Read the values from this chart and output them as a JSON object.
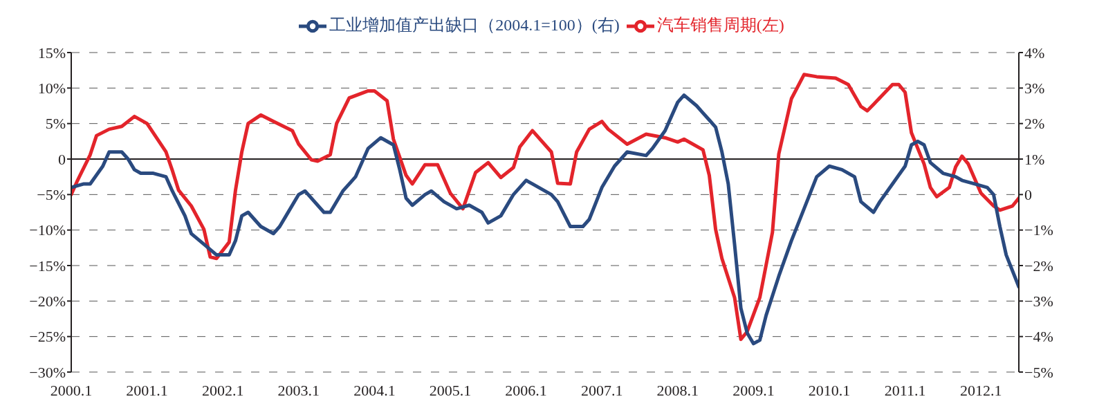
{
  "chart_data": {
    "type": "line",
    "legend": "top",
    "grid": "y",
    "marker": "none",
    "line_style": "solid",
    "xlim": [
      "2000-01",
      "2012-07"
    ],
    "xticks": [
      {
        "value": "2000-01",
        "label": "2000.1"
      },
      {
        "value": "2001-01",
        "label": "2001.1"
      },
      {
        "value": "2002-01",
        "label": "2002.1"
      },
      {
        "value": "2003-01",
        "label": "2003.1"
      },
      {
        "value": "2004-01",
        "label": "2004.1"
      },
      {
        "value": "2005-01",
        "label": "2005.1"
      },
      {
        "value": "2006-01",
        "label": "2006.1"
      },
      {
        "value": "2007-01",
        "label": "2007.1"
      },
      {
        "value": "2008-01",
        "label": "2008.1"
      },
      {
        "value": "2009-01",
        "label": "2009.1"
      },
      {
        "value": "2010-01",
        "label": "2010.1"
      },
      {
        "value": "2011-01",
        "label": "2011.1"
      },
      {
        "value": "2012-01",
        "label": "2012.1"
      }
    ],
    "ylim": [
      -30,
      15
    ],
    "yticks": [
      {
        "value": 15,
        "label": "15%"
      },
      {
        "value": 10,
        "label": "10%"
      },
      {
        "value": 5,
        "label": "5%"
      },
      0,
      {
        "value": -5,
        "label": "−5%"
      },
      {
        "value": -10,
        "label": "−10%"
      },
      {
        "value": -15,
        "label": "−15%"
      },
      {
        "value": -20,
        "label": "−20%"
      },
      {
        "value": -25,
        "label": "−25%"
      },
      {
        "value": -30,
        "label": "−30%"
      }
    ],
    "y2lim": [
      -5,
      4
    ],
    "y2ticks": [
      {
        "value": 4,
        "label": "4%"
      },
      {
        "value": 3,
        "label": "3%"
      },
      {
        "value": 2,
        "label": "2%"
      },
      {
        "value": 1,
        "label": "1%"
      },
      0,
      {
        "value": -1,
        "label": "−1%"
      },
      {
        "value": -2,
        "label": "−2%"
      },
      {
        "value": -3,
        "label": "−3%"
      },
      {
        "value": -4,
        "label": "−4%"
      },
      {
        "value": -5,
        "label": "−5%"
      }
    ],
    "ref_lines": [
      {
        "axis": "y",
        "value": 0,
        "color": "#231f20"
      }
    ],
    "series": [
      {
        "name": "汽车销售周期(左)",
        "color": "#e3242b",
        "x": [
          "2000-01",
          "2000-02",
          "2000-04",
          "2000-05",
          "2000-07",
          "2000-09",
          "2000-11",
          "2001-01",
          "2001-04",
          "2001-05",
          "2001-06",
          "2001-08",
          "2001-10",
          "2001-11",
          "2001-12",
          "2002-02",
          "2002-03",
          "2002-04",
          "2002-05",
          "2002-07",
          "2002-09",
          "2002-12",
          "2003-01",
          "2003-03",
          "2003-04",
          "2003-06",
          "2003-07",
          "2003-09",
          "2003-12",
          "2004-01",
          "2004-03",
          "2004-04",
          "2004-06",
          "2004-07",
          "2004-09",
          "2004-11",
          "2005-01",
          "2005-03",
          "2005-05",
          "2005-07",
          "2005-09",
          "2005-11",
          "2005-12",
          "2006-02",
          "2006-05",
          "2006-06",
          "2006-08",
          "2006-09",
          "2006-11",
          "2007-01",
          "2007-02",
          "2007-05",
          "2007-08",
          "2007-11",
          "2008-01",
          "2008-02",
          "2008-05",
          "2008-06",
          "2008-07",
          "2008-08",
          "2008-10",
          "2008-11",
          "2008-12",
          "2009-02",
          "2009-04",
          "2009-05",
          "2009-07",
          "2009-09",
          "2009-11",
          "2010-02",
          "2010-04",
          "2010-06",
          "2010-07",
          "2010-08",
          "2010-11",
          "2010-12",
          "2011-01",
          "2011-02",
          "2011-04",
          "2011-05",
          "2011-06",
          "2011-08",
          "2011-09",
          "2011-10",
          "2011-11",
          "2012-01",
          "2012-03",
          "2012-04",
          "2012-06",
          "2012-07"
        ],
        "values": [
          -5.0,
          -3.0,
          0.6,
          3.3,
          4.2,
          4.6,
          6.0,
          5.0,
          1.0,
          -1.6,
          -4.4,
          -6.6,
          -9.9,
          -13.8,
          -14.0,
          -11.7,
          -4.4,
          1.0,
          5.0,
          6.2,
          5.3,
          4.0,
          2.1,
          -0.1,
          -0.3,
          0.6,
          5.0,
          8.6,
          9.6,
          9.6,
          8.2,
          2.8,
          -2.3,
          -3.5,
          -0.8,
          -0.8,
          -4.8,
          -7.0,
          -1.9,
          -0.5,
          -2.6,
          -1.2,
          1.7,
          4.0,
          1.0,
          -3.4,
          -3.5,
          1.0,
          4.2,
          5.3,
          4.2,
          2.1,
          3.5,
          3.0,
          2.4,
          2.8,
          1.3,
          -2.3,
          -9.9,
          -14.0,
          -19.5,
          -25.4,
          -24.3,
          -19.5,
          -10.3,
          0.7,
          8.5,
          11.9,
          11.6,
          11.4,
          10.5,
          7.4,
          6.8,
          7.7,
          10.5,
          10.5,
          9.4,
          3.7,
          -0.7,
          -4.0,
          -5.3,
          -4.0,
          -1.1,
          0.4,
          -0.7,
          -4.8,
          -6.6,
          -7.2,
          -6.6,
          -5.5
        ]
      },
      {
        "name": "工业增加值产出缺口（2004.1=100）(右)",
        "color": "#2a4a7f",
        "axis": "y2",
        "x": [
          "2000-01",
          "2000-03",
          "2000-04",
          "2000-06",
          "2000-07",
          "2000-09",
          "2000-10",
          "2000-11",
          "2000-12",
          "2001-02",
          "2001-04",
          "2001-05",
          "2001-07",
          "2001-08",
          "2001-10",
          "2001-12",
          "2002-02",
          "2002-03",
          "2002-04",
          "2002-05",
          "2002-07",
          "2002-09",
          "2002-10",
          "2002-11",
          "2003-01",
          "2003-02",
          "2003-05",
          "2003-06",
          "2003-08",
          "2003-10",
          "2003-12",
          "2004-02",
          "2004-04",
          "2004-05",
          "2004-06",
          "2004-07",
          "2004-09",
          "2004-10",
          "2004-12",
          "2005-02",
          "2005-04",
          "2005-06",
          "2005-07",
          "2005-09",
          "2005-11",
          "2006-01",
          "2006-02",
          "2006-05",
          "2006-06",
          "2006-08",
          "2006-10",
          "2006-11",
          "2007-01",
          "2007-03",
          "2007-05",
          "2007-08",
          "2007-09",
          "2007-11",
          "2008-01",
          "2008-02",
          "2008-04",
          "2008-06",
          "2008-07",
          "2008-08",
          "2008-09",
          "2008-10",
          "2008-11",
          "2008-12",
          "2009-01",
          "2009-02",
          "2009-03",
          "2009-05",
          "2009-07",
          "2009-09",
          "2009-11",
          "2010-01",
          "2010-03",
          "2010-05",
          "2010-06",
          "2010-08",
          "2010-09",
          "2010-11",
          "2011-01",
          "2011-02",
          "2011-03",
          "2011-04",
          "2011-05",
          "2011-07",
          "2011-09",
          "2011-10",
          "2011-12",
          "2012-02",
          "2012-03",
          "2012-04",
          "2012-05",
          "2012-07"
        ],
        "values": [
          0.2,
          0.3,
          0.3,
          0.8,
          1.2,
          1.2,
          1.0,
          0.7,
          0.6,
          0.6,
          0.5,
          0.1,
          -0.6,
          -1.1,
          -1.4,
          -1.7,
          -1.7,
          -1.3,
          -0.6,
          -0.5,
          -0.9,
          -1.1,
          -0.9,
          -0.6,
          0.0,
          0.1,
          -0.5,
          -0.5,
          0.1,
          0.5,
          1.3,
          1.6,
          1.4,
          0.7,
          -0.1,
          -0.3,
          0.0,
          0.1,
          -0.2,
          -0.4,
          -0.3,
          -0.5,
          -0.8,
          -0.6,
          0.0,
          0.4,
          0.3,
          0.0,
          -0.2,
          -0.9,
          -0.9,
          -0.7,
          0.2,
          0.8,
          1.2,
          1.1,
          1.3,
          1.8,
          2.6,
          2.8,
          2.5,
          2.1,
          1.9,
          1.2,
          0.3,
          -1.4,
          -3.2,
          -3.9,
          -4.2,
          -4.1,
          -3.4,
          -2.3,
          -1.3,
          -0.4,
          0.5,
          0.8,
          0.7,
          0.5,
          -0.2,
          -0.5,
          -0.2,
          0.3,
          0.8,
          1.4,
          1.5,
          1.4,
          0.9,
          0.6,
          0.5,
          0.4,
          0.3,
          0.2,
          0.0,
          -0.9,
          -1.7,
          -2.6
        ]
      }
    ]
  }
}
